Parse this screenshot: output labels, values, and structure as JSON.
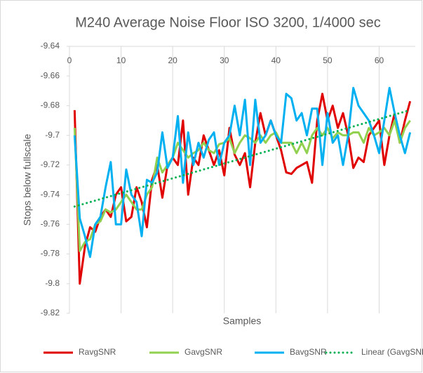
{
  "chart_data": {
    "type": "line",
    "title": "M240 Average Noise Floor ISO 3200, 1/4000 sec",
    "x_label": "Samples",
    "y_label": "Stops below fullscale",
    "x": [
      1,
      2,
      3,
      4,
      5,
      6,
      7,
      8,
      9,
      10,
      11,
      12,
      13,
      14,
      15,
      16,
      17,
      18,
      19,
      20,
      21,
      22,
      23,
      24,
      25,
      26,
      27,
      28,
      29,
      30,
      31,
      32,
      33,
      34,
      35,
      36,
      37,
      38,
      39,
      40,
      41,
      42,
      43,
      44,
      45,
      46,
      47,
      48,
      49,
      50,
      51,
      52,
      53,
      54,
      55,
      56,
      57,
      58,
      59,
      60,
      61,
      62,
      63,
      64,
      65,
      66
    ],
    "series": [
      {
        "name": "RavgSNR",
        "color": "#e00000",
        "values": [
          -9.683,
          -9.8,
          -9.775,
          -9.762,
          -9.765,
          -9.755,
          -9.75,
          -9.755,
          -9.74,
          -9.735,
          -9.758,
          -9.755,
          -9.735,
          -9.745,
          -9.762,
          -9.73,
          -9.72,
          -9.742,
          -9.72,
          -9.715,
          -9.72,
          -9.69,
          -9.74,
          -9.715,
          -9.72,
          -9.7,
          -9.71,
          -9.72,
          -9.71,
          -9.727,
          -9.695,
          -9.713,
          -9.72,
          -9.712,
          -9.735,
          -9.705,
          -9.685,
          -9.7,
          -9.69,
          -9.7,
          -9.71,
          -9.725,
          -9.726,
          -9.722,
          -9.72,
          -9.718,
          -9.732,
          -9.69,
          -9.672,
          -9.69,
          -9.68,
          -9.695,
          -9.685,
          -9.7,
          -9.722,
          -9.715,
          -9.718,
          -9.7,
          -9.695,
          -9.69,
          -9.72,
          -9.7,
          -9.685,
          -9.705,
          -9.69,
          -9.677
        ]
      },
      {
        "name": "GavgSNR",
        "color": "#92d050",
        "values": [
          -9.695,
          -9.778,
          -9.772,
          -9.77,
          -9.76,
          -9.758,
          -9.75,
          -9.752,
          -9.75,
          -9.745,
          -9.74,
          -9.745,
          -9.75,
          -9.75,
          -9.74,
          -9.735,
          -9.715,
          -9.725,
          -9.72,
          -9.715,
          -9.705,
          -9.71,
          -9.715,
          -9.712,
          -9.71,
          -9.705,
          -9.71,
          -9.712,
          -9.706,
          -9.705,
          -9.702,
          -9.712,
          -9.705,
          -9.7,
          -9.702,
          -9.705,
          -9.7,
          -9.705,
          -9.7,
          -9.698,
          -9.705,
          -9.705,
          -9.705,
          -9.712,
          -9.705,
          -9.712,
          -9.7,
          -9.695,
          -9.7,
          -9.695,
          -9.702,
          -9.698,
          -9.7,
          -9.7,
          -9.698,
          -9.698,
          -9.705,
          -9.695,
          -9.7,
          -9.698,
          -9.695,
          -9.7,
          -9.69,
          -9.705,
          -9.695,
          -9.69
        ]
      },
      {
        "name": "BavgSNR",
        "color": "#00b0f0",
        "values": [
          -9.7,
          -9.756,
          -9.768,
          -9.782,
          -9.76,
          -9.755,
          -9.735,
          -9.718,
          -9.76,
          -9.76,
          -9.723,
          -9.74,
          -9.745,
          -9.768,
          -9.73,
          -9.732,
          -9.725,
          -9.698,
          -9.722,
          -9.715,
          -9.687,
          -9.732,
          -9.698,
          -9.72,
          -9.705,
          -9.715,
          -9.703,
          -9.698,
          -9.72,
          -9.705,
          -9.7,
          -9.68,
          -9.7,
          -9.676,
          -9.72,
          -9.676,
          -9.705,
          -9.7,
          -9.69,
          -9.7,
          -9.705,
          -9.672,
          -9.675,
          -9.69,
          -9.685,
          -9.7,
          -9.682,
          -9.682,
          -9.72,
          -9.685,
          -9.705,
          -9.7,
          -9.72,
          -9.7,
          -9.668,
          -9.68,
          -9.685,
          -9.69,
          -9.7,
          -9.712,
          -9.69,
          -9.668,
          -9.685,
          -9.7,
          -9.712,
          -9.698
        ]
      },
      {
        "name": "Linear (GavgSNR)",
        "color": "#00b050",
        "dotted": true,
        "x": [
          1,
          66
        ],
        "values": [
          -9.748,
          -9.683
        ]
      }
    ],
    "xlim": [
      0,
      67
    ],
    "xticks": [
      0,
      10,
      20,
      30,
      40,
      50,
      60
    ],
    "ylim": [
      -9.82,
      -9.64
    ],
    "yticks": [
      -9.64,
      -9.66,
      -9.68,
      -9.7,
      -9.72,
      -9.74,
      -9.76,
      -9.78,
      -9.8,
      -9.82
    ],
    "grid": "x",
    "legend": "bottom"
  }
}
